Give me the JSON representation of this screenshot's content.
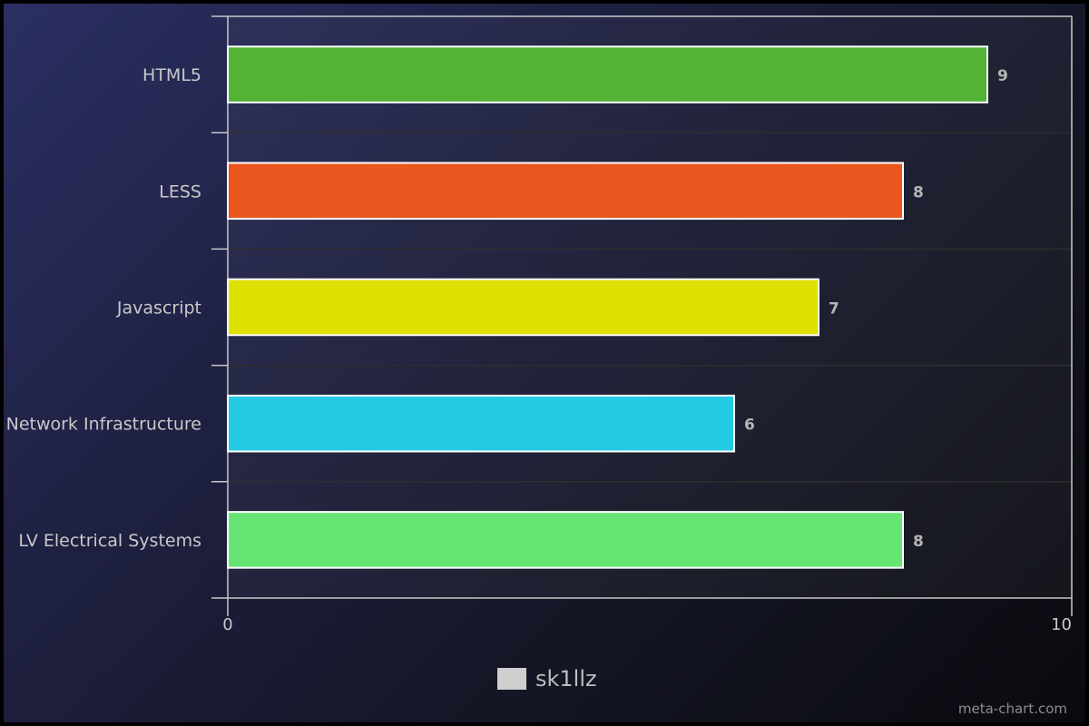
{
  "chart_data": {
    "type": "bar",
    "orientation": "horizontal",
    "categories": [
      "HTML5",
      "LESS",
      "Javascript",
      "Network Infrastructure",
      "LV Electrical Systems"
    ],
    "values": [
      9,
      8,
      7,
      6,
      8
    ],
    "colors": [
      "#52b335",
      "#ea561e",
      "#dde000",
      "#25cbe4",
      "#66e575"
    ],
    "xlim": [
      0,
      10
    ],
    "x_ticks": [
      "0",
      "10"
    ],
    "series": [
      {
        "name": "sk1llz",
        "values": [
          9,
          8,
          7,
          6,
          8
        ]
      }
    ],
    "legend": "bottom-center",
    "grid": true
  },
  "legend": {
    "label": "sk1llz",
    "swatch_color": "#cfcfcf"
  },
  "credit": "meta-chart.com"
}
